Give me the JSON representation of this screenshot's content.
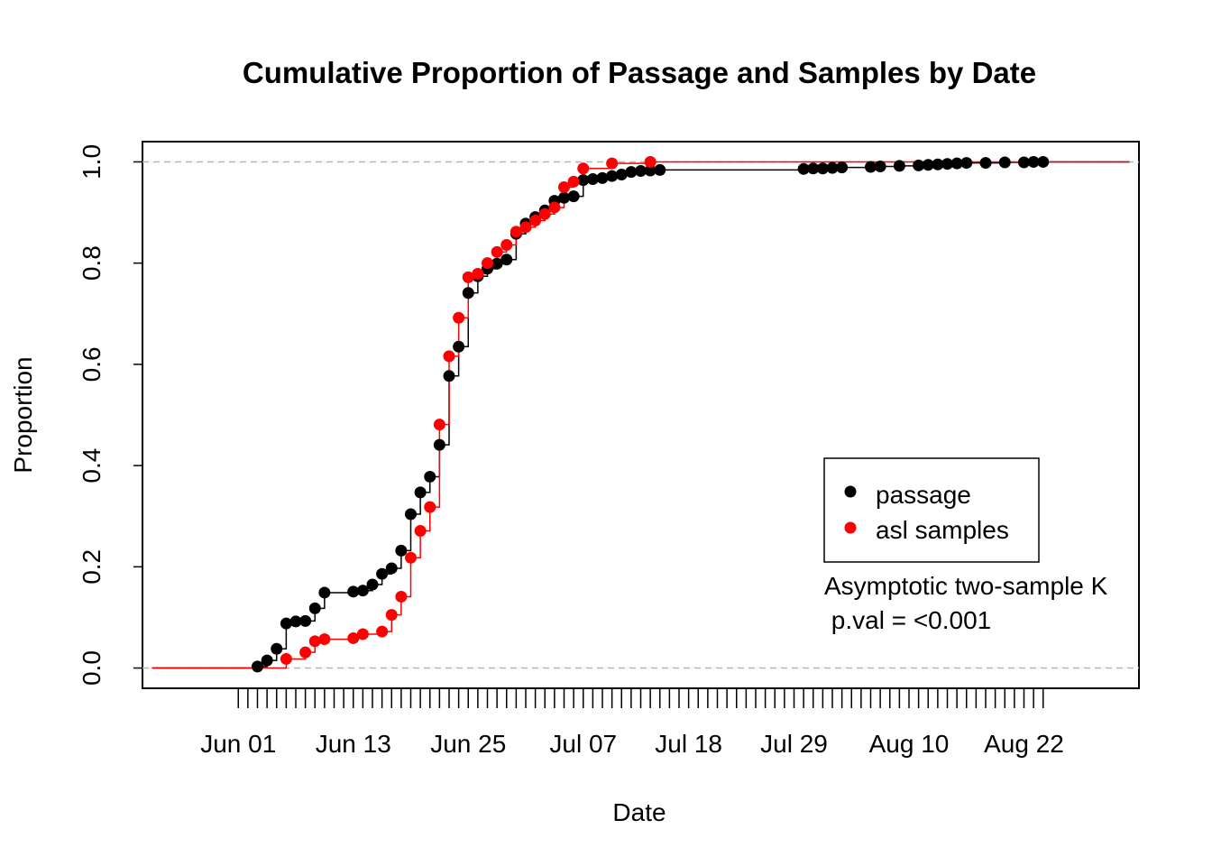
{
  "chart_data": {
    "type": "scatter",
    "title": "Cumulative Proportion of Passage and Samples by Date",
    "xlabel": "Date",
    "ylabel": "Proportion",
    "x_start": "2023-05-23",
    "x_end": "2023-09-02",
    "xlim_start": "2023-05-22",
    "xlim_end": "2023-09-03",
    "ylim": [
      -0.04,
      1.04
    ],
    "yticks": [
      "0.0",
      "0.2",
      "0.4",
      "0.6",
      "0.8",
      "1.0"
    ],
    "xticks": [
      {
        "date": "2023-06-01",
        "label": "Jun 01"
      },
      {
        "date": "2023-06-13",
        "label": "Jun 13"
      },
      {
        "date": "2023-06-25",
        "label": "Jun 25"
      },
      {
        "date": "2023-07-07",
        "label": "Jul 07"
      },
      {
        "date": "2023-07-18",
        "label": "Jul 18"
      },
      {
        "date": "2023-07-29",
        "label": "Jul 29"
      },
      {
        "date": "2023-08-10",
        "label": "Aug 10"
      },
      {
        "date": "2023-08-22",
        "label": "Aug 22"
      }
    ],
    "minor_tick_range": [
      "2023-06-01",
      "2023-08-24"
    ],
    "reference_lines": [
      0,
      1
    ],
    "legend": {
      "position": "right",
      "entries": [
        {
          "label": "passage",
          "color": "#000000"
        },
        {
          "label": "asl samples",
          "color": "#ff0000"
        }
      ]
    },
    "annotation": {
      "line1": "Asymptotic two-sample K",
      "line2": " p.val = <0.001"
    },
    "series": [
      {
        "name": "passage",
        "color": "#000000",
        "points": [
          [
            "2023-06-03",
            0.003
          ],
          [
            "2023-06-04",
            0.015
          ],
          [
            "2023-06-05",
            0.038
          ],
          [
            "2023-06-06",
            0.088
          ],
          [
            "2023-06-07",
            0.092
          ],
          [
            "2023-06-08",
            0.093
          ],
          [
            "2023-06-09",
            0.118
          ],
          [
            "2023-06-10",
            0.149
          ],
          [
            "2023-06-13",
            0.151
          ],
          [
            "2023-06-14",
            0.153
          ],
          [
            "2023-06-15",
            0.165
          ],
          [
            "2023-06-16",
            0.186
          ],
          [
            "2023-06-17",
            0.197
          ],
          [
            "2023-06-18",
            0.232
          ],
          [
            "2023-06-19",
            0.304
          ],
          [
            "2023-06-20",
            0.347
          ],
          [
            "2023-06-21",
            0.378
          ],
          [
            "2023-06-22",
            0.441
          ],
          [
            "2023-06-23",
            0.577
          ],
          [
            "2023-06-24",
            0.635
          ],
          [
            "2023-06-25",
            0.741
          ],
          [
            "2023-06-26",
            0.774
          ],
          [
            "2023-06-27",
            0.789
          ],
          [
            "2023-06-28",
            0.799
          ],
          [
            "2023-06-29",
            0.807
          ],
          [
            "2023-06-30",
            0.858
          ],
          [
            "2023-07-01",
            0.878
          ],
          [
            "2023-07-02",
            0.891
          ],
          [
            "2023-07-03",
            0.904
          ],
          [
            "2023-07-04",
            0.923
          ],
          [
            "2023-07-05",
            0.929
          ],
          [
            "2023-07-06",
            0.932
          ],
          [
            "2023-07-07",
            0.964
          ],
          [
            "2023-07-08",
            0.966
          ],
          [
            "2023-07-09",
            0.968
          ],
          [
            "2023-07-10",
            0.972
          ],
          [
            "2023-07-11",
            0.975
          ],
          [
            "2023-07-12",
            0.98
          ],
          [
            "2023-07-13",
            0.982
          ],
          [
            "2023-07-14",
            0.983
          ],
          [
            "2023-07-15",
            0.984
          ],
          [
            "2023-07-30",
            0.986
          ],
          [
            "2023-07-31",
            0.987
          ],
          [
            "2023-08-01",
            0.987
          ],
          [
            "2023-08-02",
            0.988
          ],
          [
            "2023-08-03",
            0.989
          ],
          [
            "2023-08-06",
            0.99
          ],
          [
            "2023-08-07",
            0.991
          ],
          [
            "2023-08-09",
            0.992
          ],
          [
            "2023-08-11",
            0.993
          ],
          [
            "2023-08-12",
            0.994
          ],
          [
            "2023-08-13",
            0.995
          ],
          [
            "2023-08-14",
            0.996
          ],
          [
            "2023-08-15",
            0.997
          ],
          [
            "2023-08-16",
            0.998
          ],
          [
            "2023-08-18",
            0.998
          ],
          [
            "2023-08-20",
            0.999
          ],
          [
            "2023-08-22",
            0.999
          ],
          [
            "2023-08-23",
            1.0
          ],
          [
            "2023-08-24",
            1.0
          ]
        ]
      },
      {
        "name": "asl samples",
        "color": "#ff0000",
        "points": [
          [
            "2023-06-06",
            0.018
          ],
          [
            "2023-06-08",
            0.031
          ],
          [
            "2023-06-09",
            0.053
          ],
          [
            "2023-06-10",
            0.057
          ],
          [
            "2023-06-13",
            0.059
          ],
          [
            "2023-06-14",
            0.067
          ],
          [
            "2023-06-16",
            0.072
          ],
          [
            "2023-06-17",
            0.105
          ],
          [
            "2023-06-18",
            0.141
          ],
          [
            "2023-06-19",
            0.218
          ],
          [
            "2023-06-20",
            0.271
          ],
          [
            "2023-06-21",
            0.318
          ],
          [
            "2023-06-22",
            0.481
          ],
          [
            "2023-06-23",
            0.616
          ],
          [
            "2023-06-24",
            0.692
          ],
          [
            "2023-06-25",
            0.772
          ],
          [
            "2023-06-26",
            0.779
          ],
          [
            "2023-06-27",
            0.8
          ],
          [
            "2023-06-28",
            0.822
          ],
          [
            "2023-06-29",
            0.836
          ],
          [
            "2023-06-30",
            0.862
          ],
          [
            "2023-07-01",
            0.871
          ],
          [
            "2023-07-02",
            0.884
          ],
          [
            "2023-07-03",
            0.897
          ],
          [
            "2023-07-04",
            0.91
          ],
          [
            "2023-07-05",
            0.95
          ],
          [
            "2023-07-06",
            0.961
          ],
          [
            "2023-07-07",
            0.987
          ],
          [
            "2023-07-10",
            0.997
          ],
          [
            "2023-07-14",
            1.0
          ]
        ]
      }
    ]
  }
}
